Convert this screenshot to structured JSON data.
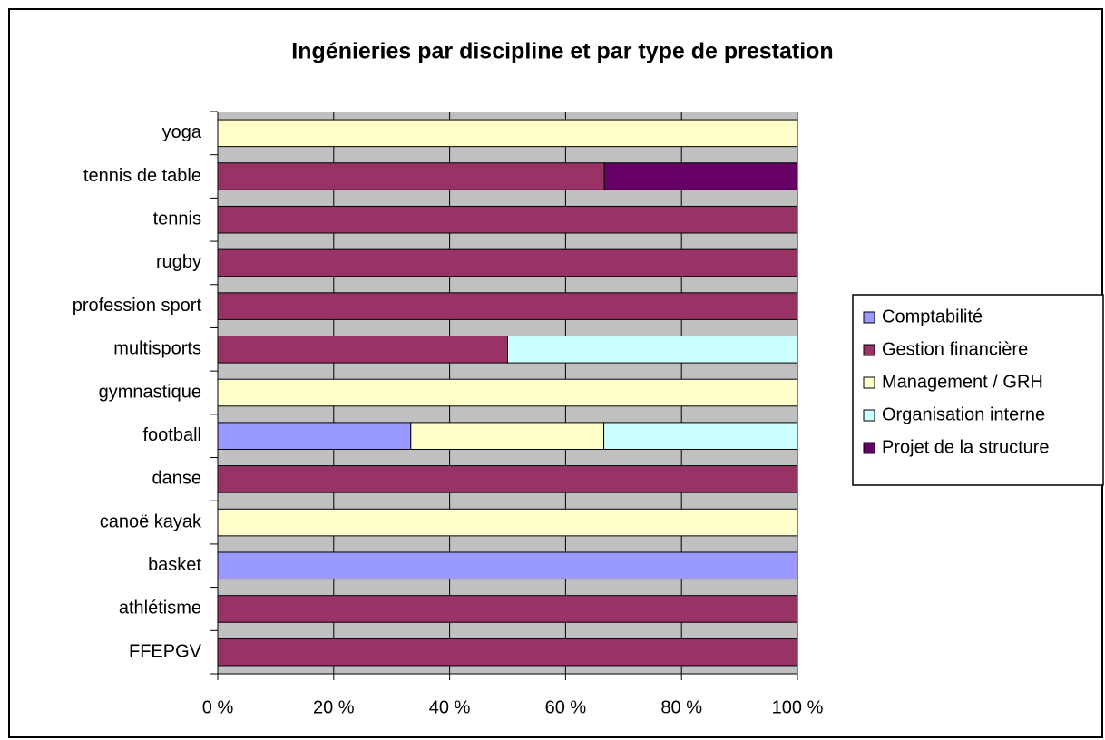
{
  "chart_data": {
    "type": "stacked_barh",
    "title": "Ingénieries par discipline et par type de prestation",
    "categories": [
      "FFEPGV",
      "athlétisme",
      "basket",
      "canoë kayak",
      "danse",
      "football",
      "gymnastique",
      "multisports",
      "profession sport",
      "rugby",
      "tennis",
      "tennis de table",
      "yoga"
    ],
    "series": [
      {
        "name": "Comptabilité",
        "color": "#9999ff",
        "values": [
          0,
          0,
          100,
          0,
          0,
          33.3,
          0,
          0,
          0,
          0,
          0,
          0,
          0
        ]
      },
      {
        "name": "Gestion financière",
        "color": "#993366",
        "values": [
          100,
          100,
          0,
          0,
          100,
          0,
          0,
          50,
          100,
          100,
          100,
          66.7,
          0
        ]
      },
      {
        "name": "Management / GRH",
        "color": "#ffffcc",
        "values": [
          0,
          0,
          0,
          100,
          0,
          33.3,
          100,
          0,
          0,
          0,
          0,
          0,
          100
        ]
      },
      {
        "name": "Organisation interne",
        "color": "#ccffff",
        "values": [
          0,
          0,
          0,
          0,
          0,
          33.4,
          0,
          50,
          0,
          0,
          0,
          0,
          0
        ]
      },
      {
        "name": "Projet de la structure",
        "color": "#660066",
        "values": [
          0,
          0,
          0,
          0,
          0,
          0,
          0,
          0,
          0,
          0,
          0,
          33.3,
          0
        ]
      }
    ],
    "xlim": [
      0,
      100
    ],
    "xticks": [
      {
        "value": 0,
        "label": "0 %"
      },
      {
        "value": 20,
        "label": "20 %"
      },
      {
        "value": 40,
        "label": "40 %"
      },
      {
        "value": 60,
        "label": "60 %"
      },
      {
        "value": 80,
        "label": "80 %"
      },
      {
        "value": 100,
        "label": "100 %"
      }
    ],
    "grid": true,
    "legend": "right"
  }
}
